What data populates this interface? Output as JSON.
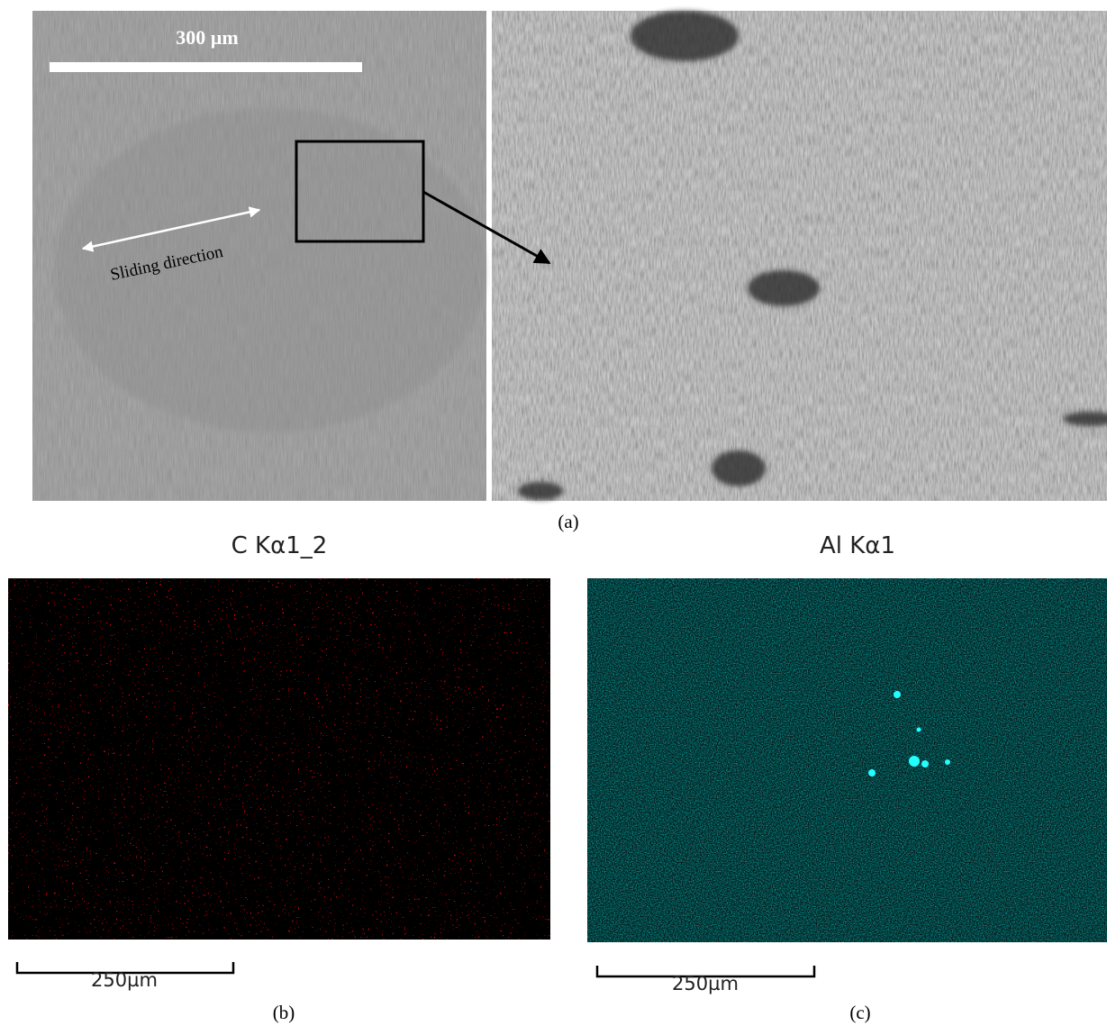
{
  "panel_a": {
    "scale_bar_label": "300 µm",
    "annotation": "Sliding direction",
    "caption": "(a)"
  },
  "panel_b": {
    "title": "C Kα1_2",
    "scale_bar_label": "250µm",
    "caption": "(b)"
  },
  "panel_c": {
    "title": "Al Kα1",
    "scale_bar_label": "250µm",
    "caption": "(c)"
  }
}
